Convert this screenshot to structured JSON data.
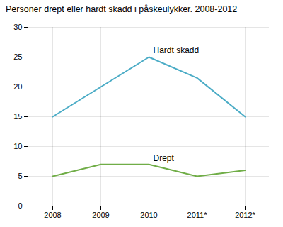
{
  "chart_data": {
    "type": "line",
    "title": "Personer drept eller hardt skadd i påskeulykker. 2008-2012",
    "categories": [
      "2008",
      "2009",
      "2010",
      "2011*",
      "2012*"
    ],
    "series": [
      {
        "name": "Hardt skadd",
        "color": "#4bacc6",
        "values": [
          15,
          20,
          25,
          21.5,
          15
        ]
      },
      {
        "name": "Drept",
        "color": "#70ad47",
        "values": [
          5,
          7,
          7,
          5,
          6
        ]
      }
    ],
    "ylim": [
      0,
      30
    ],
    "yticks": [
      0,
      5,
      10,
      15,
      20,
      25,
      30
    ],
    "grid": true
  }
}
